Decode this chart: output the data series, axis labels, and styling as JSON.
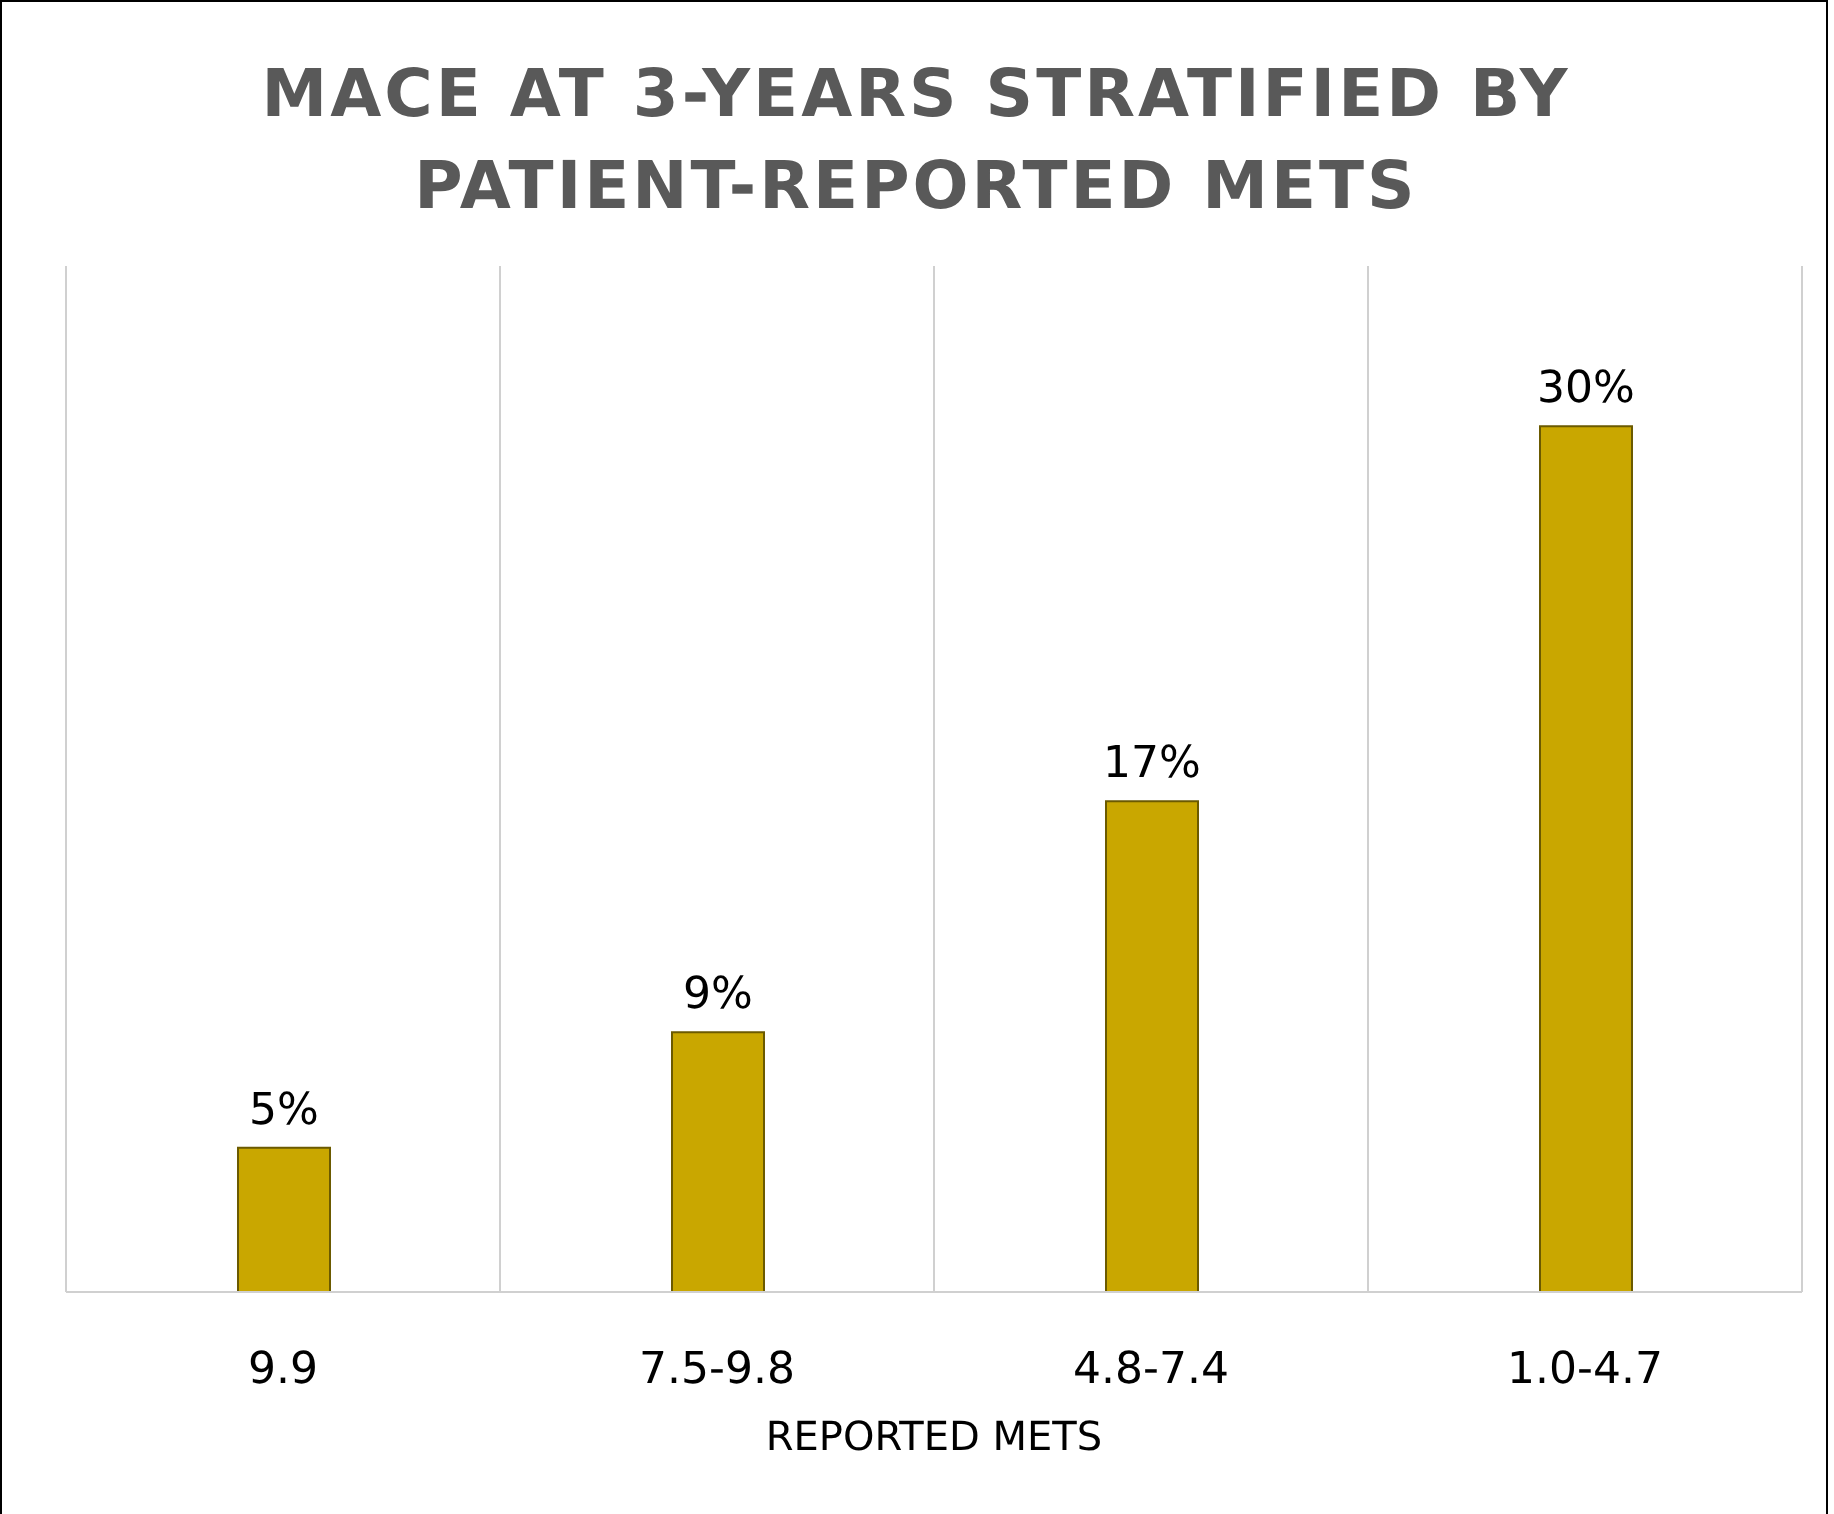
{
  "chart_data": {
    "type": "bar",
    "title": "MACE AT 3-YEARS STRATIFIED BY PATIENT-REPORTED METS",
    "xlabel": "REPORTED METS",
    "categories": [
      "9.9",
      "7.5-9.8",
      "4.8-7.4",
      "1.0-4.7"
    ],
    "values": [
      5,
      9,
      17,
      30
    ],
    "value_labels": [
      "5%",
      "9%",
      "17%",
      "30%"
    ],
    "color": "#c9a700",
    "grid": "x"
  }
}
